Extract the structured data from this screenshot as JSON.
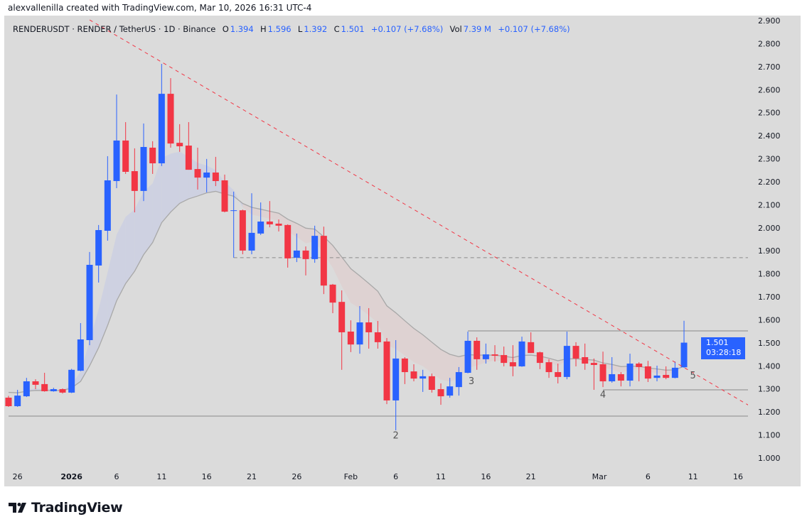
{
  "attribution": "alexvallenilla created with TradingView.com, Mar 10, 2026 16:31 UTC-4",
  "legend": {
    "symbol": "RENDERUSDT · RENDER / TetherUS · 1D · Binance",
    "o_label": "O",
    "o": "1.394",
    "h_label": "H",
    "h": "1.596",
    "l_label": "L",
    "l": "1.392",
    "c_label": "C",
    "c": "1.501",
    "change": "+0.107 (+7.68%)",
    "vol_label": "Vol",
    "vol": "7.39 M",
    "vol_change": "+0.107 (+7.68%)"
  },
  "price_tag": {
    "price": "1.501",
    "countdown": "03:28:18"
  },
  "logo_text": "TradingView",
  "colors": {
    "up": "#2962ff",
    "down": "#f23645",
    "background": "#dbdbdb",
    "trendline": "#f23645",
    "levels": "#8a8a8a"
  },
  "chart_data": {
    "type": "candlestick",
    "title": "",
    "ylim": [
      1.0,
      2.9
    ],
    "y_ticks": [
      "1.000",
      "1.100",
      "1.200",
      "1.300",
      "1.400",
      "1.500",
      "1.600",
      "1.700",
      "1.800",
      "1.900",
      "2.000",
      "2.100",
      "2.200",
      "2.300",
      "2.400",
      "2.500",
      "2.600",
      "2.700",
      "2.800",
      "2.900"
    ],
    "x_ticks": [
      {
        "date": "2025-12-26",
        "label": "26"
      },
      {
        "date": "2026-01-01",
        "label": "2026"
      },
      {
        "date": "2026-01-06",
        "label": "6"
      },
      {
        "date": "2026-01-11",
        "label": "11"
      },
      {
        "date": "2026-01-16",
        "label": "16"
      },
      {
        "date": "2026-01-21",
        "label": "21"
      },
      {
        "date": "2026-01-26",
        "label": "26"
      },
      {
        "date": "2026-02-01",
        "label": "Feb"
      },
      {
        "date": "2026-02-06",
        "label": "6"
      },
      {
        "date": "2026-02-11",
        "label": "11"
      },
      {
        "date": "2026-02-16",
        "label": "16"
      },
      {
        "date": "2026-02-21",
        "label": "21"
      },
      {
        "date": "2026-03-01",
        "label": "Mar"
      },
      {
        "date": "2026-03-06",
        "label": "6"
      },
      {
        "date": "2026-03-11",
        "label": "11"
      },
      {
        "date": "2026-03-16",
        "label": "16"
      }
    ],
    "candles": [
      [
        "2025-12-25",
        1.262,
        1.27,
        1.222,
        1.225
      ],
      [
        "2025-12-26",
        1.225,
        1.296,
        1.222,
        1.271
      ],
      [
        "2025-12-27",
        1.268,
        1.348,
        1.265,
        1.333
      ],
      [
        "2025-12-28",
        1.333,
        1.342,
        1.299,
        1.318
      ],
      [
        "2025-12-29",
        1.321,
        1.37,
        1.288,
        1.29
      ],
      [
        "2025-12-30",
        1.29,
        1.305,
        1.288,
        1.299
      ],
      [
        "2025-12-31",
        1.299,
        1.302,
        1.28,
        1.284
      ],
      [
        "2026-01-01",
        1.284,
        1.387,
        1.282,
        1.383
      ],
      [
        "2026-01-02",
        1.379,
        1.586,
        1.377,
        1.515
      ],
      [
        "2026-01-03",
        1.512,
        1.895,
        1.49,
        1.839
      ],
      [
        "2026-01-04",
        1.836,
        2.012,
        1.762,
        1.99
      ],
      [
        "2026-01-05",
        1.987,
        2.311,
        1.944,
        2.206
      ],
      [
        "2026-01-06",
        2.203,
        2.579,
        2.172,
        2.379
      ],
      [
        "2026-01-07",
        2.379,
        2.459,
        2.234,
        2.243
      ],
      [
        "2026-01-08",
        2.246,
        2.345,
        2.067,
        2.16
      ],
      [
        "2026-01-09",
        2.16,
        2.453,
        2.116,
        2.351
      ],
      [
        "2026-01-10",
        2.348,
        2.376,
        2.234,
        2.28
      ],
      [
        "2026-01-11",
        2.28,
        2.712,
        2.268,
        2.582
      ],
      [
        "2026-01-12",
        2.582,
        2.65,
        2.348,
        2.366
      ],
      [
        "2026-01-13",
        2.369,
        2.45,
        2.33,
        2.354
      ],
      [
        "2026-01-14",
        2.357,
        2.459,
        2.252,
        2.252
      ],
      [
        "2026-01-15",
        2.255,
        2.348,
        2.166,
        2.218
      ],
      [
        "2026-01-16",
        2.218,
        2.299,
        2.154,
        2.24
      ],
      [
        "2026-01-17",
        2.24,
        2.308,
        2.181,
        2.203
      ],
      [
        "2026-01-18",
        2.206,
        2.231,
        2.067,
        2.07
      ],
      [
        "2026-01-19",
        2.073,
        2.157,
        1.87,
        2.076
      ],
      [
        "2026-01-20",
        2.076,
        2.079,
        1.885,
        1.901
      ],
      [
        "2026-01-21",
        1.901,
        2.15,
        1.885,
        1.978
      ],
      [
        "2026-01-22",
        1.975,
        2.11,
        1.969,
        2.027
      ],
      [
        "2026-01-23",
        2.027,
        2.116,
        2.002,
        2.015
      ],
      [
        "2026-01-24",
        2.018,
        2.036,
        1.984,
        2.009
      ],
      [
        "2026-01-25",
        2.012,
        2.015,
        1.827,
        1.867
      ],
      [
        "2026-01-26",
        1.87,
        1.975,
        1.851,
        1.901
      ],
      [
        "2026-01-27",
        1.901,
        1.919,
        1.793,
        1.864
      ],
      [
        "2026-01-28",
        1.864,
        2.009,
        1.848,
        1.965
      ],
      [
        "2026-01-29",
        1.965,
        2.005,
        1.712,
        1.749
      ],
      [
        "2026-01-30",
        1.753,
        1.756,
        1.629,
        1.675
      ],
      [
        "2026-01-31",
        1.678,
        1.728,
        1.383,
        1.546
      ],
      [
        "2026-02-01",
        1.549,
        1.598,
        1.46,
        1.493
      ],
      [
        "2026-02-02",
        1.493,
        1.66,
        1.453,
        1.589
      ],
      [
        "2026-02-03",
        1.589,
        1.651,
        1.475,
        1.546
      ],
      [
        "2026-02-04",
        1.546,
        1.595,
        1.475,
        1.503
      ],
      [
        "2026-02-05",
        1.506,
        1.521,
        1.234,
        1.25
      ],
      [
        "2026-02-06",
        1.25,
        1.512,
        1.12,
        1.432
      ],
      [
        "2026-02-07",
        1.432,
        1.438,
        1.321,
        1.373
      ],
      [
        "2026-02-08",
        1.376,
        1.407,
        1.333,
        1.345
      ],
      [
        "2026-02-09",
        1.345,
        1.383,
        1.287,
        1.355
      ],
      [
        "2026-02-10",
        1.355,
        1.367,
        1.284,
        1.296
      ],
      [
        "2026-02-11",
        1.299,
        1.324,
        1.231,
        1.268
      ],
      [
        "2026-02-12",
        1.271,
        1.348,
        1.262,
        1.311
      ],
      [
        "2026-02-13",
        1.308,
        1.395,
        1.271,
        1.373
      ],
      [
        "2026-02-14",
        1.37,
        1.549,
        1.368,
        1.509
      ],
      [
        "2026-02-15",
        1.509,
        1.524,
        1.383,
        1.429
      ],
      [
        "2026-02-16",
        1.429,
        1.497,
        1.41,
        1.45
      ],
      [
        "2026-02-17",
        1.45,
        1.49,
        1.419,
        1.444
      ],
      [
        "2026-02-18",
        1.447,
        1.484,
        1.398,
        1.413
      ],
      [
        "2026-02-19",
        1.416,
        1.49,
        1.355,
        1.398
      ],
      [
        "2026-02-20",
        1.398,
        1.527,
        1.396,
        1.506
      ],
      [
        "2026-02-21",
        1.503,
        1.546,
        1.456,
        1.456
      ],
      [
        "2026-02-22",
        1.459,
        1.462,
        1.386,
        1.413
      ],
      [
        "2026-02-23",
        1.416,
        1.429,
        1.348,
        1.373
      ],
      [
        "2026-02-24",
        1.373,
        1.41,
        1.324,
        1.352
      ],
      [
        "2026-02-25",
        1.352,
        1.549,
        1.342,
        1.487
      ],
      [
        "2026-02-26",
        1.487,
        1.503,
        1.398,
        1.432
      ],
      [
        "2026-02-27",
        1.438,
        1.497,
        1.383,
        1.41
      ],
      [
        "2026-02-28",
        1.413,
        1.432,
        1.296,
        1.404
      ],
      [
        "2026-03-01",
        1.407,
        1.462,
        1.308,
        1.333
      ],
      [
        "2026-03-02",
        1.333,
        1.438,
        1.327,
        1.364
      ],
      [
        "2026-03-03",
        1.364,
        1.373,
        1.311,
        1.336
      ],
      [
        "2026-03-04",
        1.336,
        1.453,
        1.311,
        1.41
      ],
      [
        "2026-03-05",
        1.41,
        1.416,
        1.333,
        1.395
      ],
      [
        "2026-03-06",
        1.398,
        1.422,
        1.33,
        1.345
      ],
      [
        "2026-03-07",
        1.348,
        1.401,
        1.333,
        1.358
      ],
      [
        "2026-03-08",
        1.361,
        1.398,
        1.342,
        1.348
      ],
      [
        "2026-03-09",
        1.348,
        1.419,
        1.346,
        1.392
      ],
      [
        "2026-03-10",
        1.394,
        1.596,
        1.392,
        1.501
      ]
    ],
    "candle_fields": [
      "date",
      "open",
      "high",
      "low",
      "close"
    ],
    "drawings": {
      "trendline": {
        "from": [
          "2026-01-03",
          2.903
        ],
        "to": [
          "2026-03-18",
          1.21
        ],
        "style": "dashed"
      },
      "levels": [
        {
          "price": 1.182,
          "from": "2025-12-25",
          "style": "solid"
        },
        {
          "price": 1.87,
          "from": "2026-01-19",
          "style": "dashed"
        },
        {
          "price": 1.552,
          "from": "2026-02-14",
          "style": "solid"
        },
        {
          "price": 1.296,
          "from": "2026-03-01",
          "style": "solid"
        }
      ],
      "wave_labels": [
        {
          "text": "2",
          "date": "2026-02-06",
          "price": 1.085
        },
        {
          "text": "3",
          "date": "2026-02-14",
          "price": 1.32
        },
        {
          "text": "4",
          "date": "2026-03-01",
          "price": 1.262
        },
        {
          "text": "5",
          "date": "2026-03-11",
          "price": 1.345
        }
      ]
    }
  }
}
